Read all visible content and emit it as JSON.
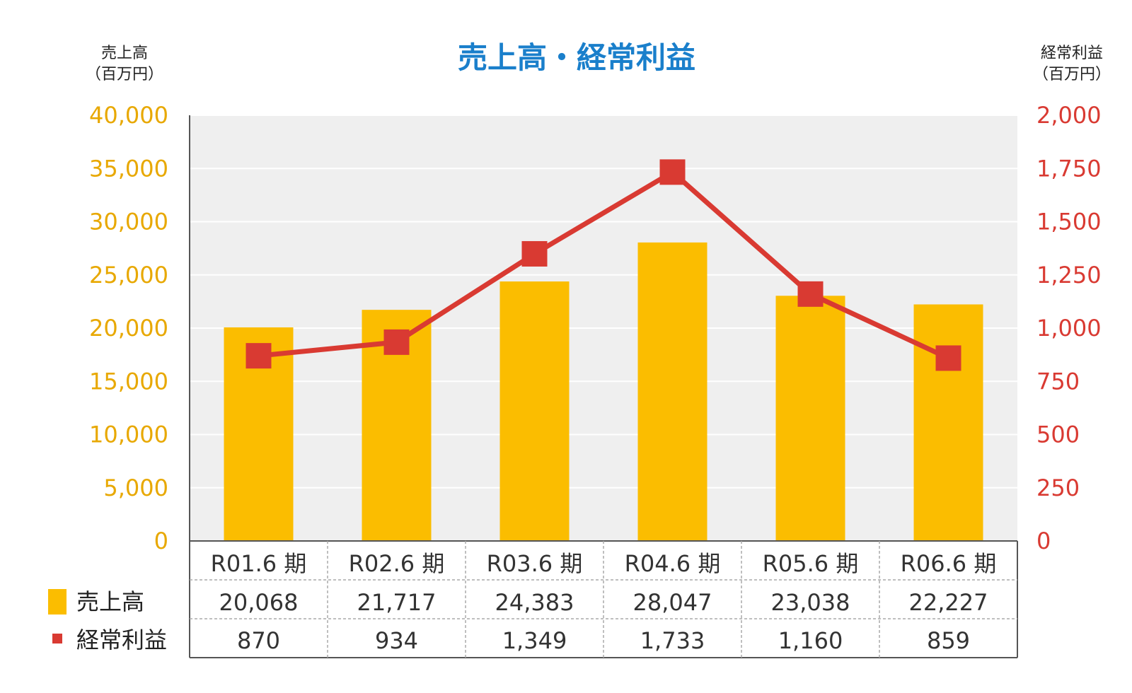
{
  "chart_data": {
    "type": "bar+line",
    "title": "売上高・経常利益",
    "left_axis": {
      "label_line1": "売上高",
      "label_line2": "（百万円）",
      "range": [
        0,
        40000
      ],
      "ticks": [
        "0",
        "5,000",
        "10,000",
        "15,000",
        "20,000",
        "25,000",
        "30,000",
        "35,000",
        "40,000"
      ]
    },
    "right_axis": {
      "label_line1": "経常利益",
      "label_line2": "（百万円）",
      "range": [
        0,
        2000
      ],
      "ticks": [
        "0",
        "250",
        "500",
        "750",
        "1,000",
        "1,250",
        "1,500",
        "1,750",
        "2,000"
      ]
    },
    "categories": [
      "R01.6 期",
      "R02.6 期",
      "R03.6 期",
      "R04.6 期",
      "R05.6 期",
      "R06.6 期"
    ],
    "series": [
      {
        "name": "売上高",
        "type": "bar",
        "axis": "left",
        "color": "#fbbd00",
        "values": [
          20068,
          21717,
          24383,
          28047,
          23038,
          22227
        ],
        "labels": [
          "20,068",
          "21,717",
          "24,383",
          "28,047",
          "23,038",
          "22,227"
        ]
      },
      {
        "name": "経常利益",
        "type": "line",
        "axis": "right",
        "color": "#d93a32",
        "values": [
          870,
          934,
          1349,
          1733,
          1160,
          859
        ],
        "labels": [
          "870",
          "934",
          "1,349",
          "1,733",
          "1,160",
          "859"
        ]
      }
    ],
    "plot_background": "#efefef",
    "grid": true,
    "legend": "table-left"
  }
}
